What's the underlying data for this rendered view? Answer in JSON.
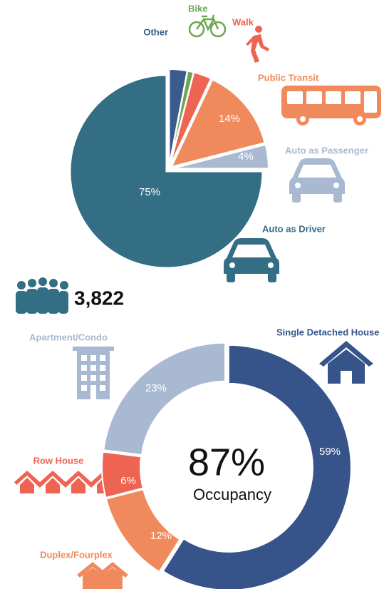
{
  "chart_data": [
    {
      "type": "pie",
      "categories": [
        "Other",
        "Bike",
        "Walk",
        "Public Transit",
        "Auto as Passenger",
        "Auto as Driver"
      ],
      "values": [
        3,
        1,
        3,
        14,
        4,
        75
      ],
      "value_labels": [
        "3%",
        "1%",
        "3%",
        "14%",
        "4%",
        "75%"
      ],
      "colors": [
        "#3b5a8e",
        "#6aa84f",
        "#ee6352",
        "#f08a5d",
        "#a9b9d2",
        "#336e85"
      ]
    },
    {
      "type": "donut",
      "categories": [
        "Single Detached House",
        "Duplex/Fourplex",
        "Row House",
        "Apartment/Condo"
      ],
      "values": [
        59,
        12,
        6,
        23
      ],
      "value_labels": [
        "59%",
        "12%",
        "6%",
        "23%"
      ],
      "colors": [
        "#36548a",
        "#f08a5d",
        "#ee6352",
        "#a9b9d2"
      ],
      "center_label": "87%",
      "center_sublabel": "Occupancy"
    }
  ],
  "headcount": "3,822"
}
